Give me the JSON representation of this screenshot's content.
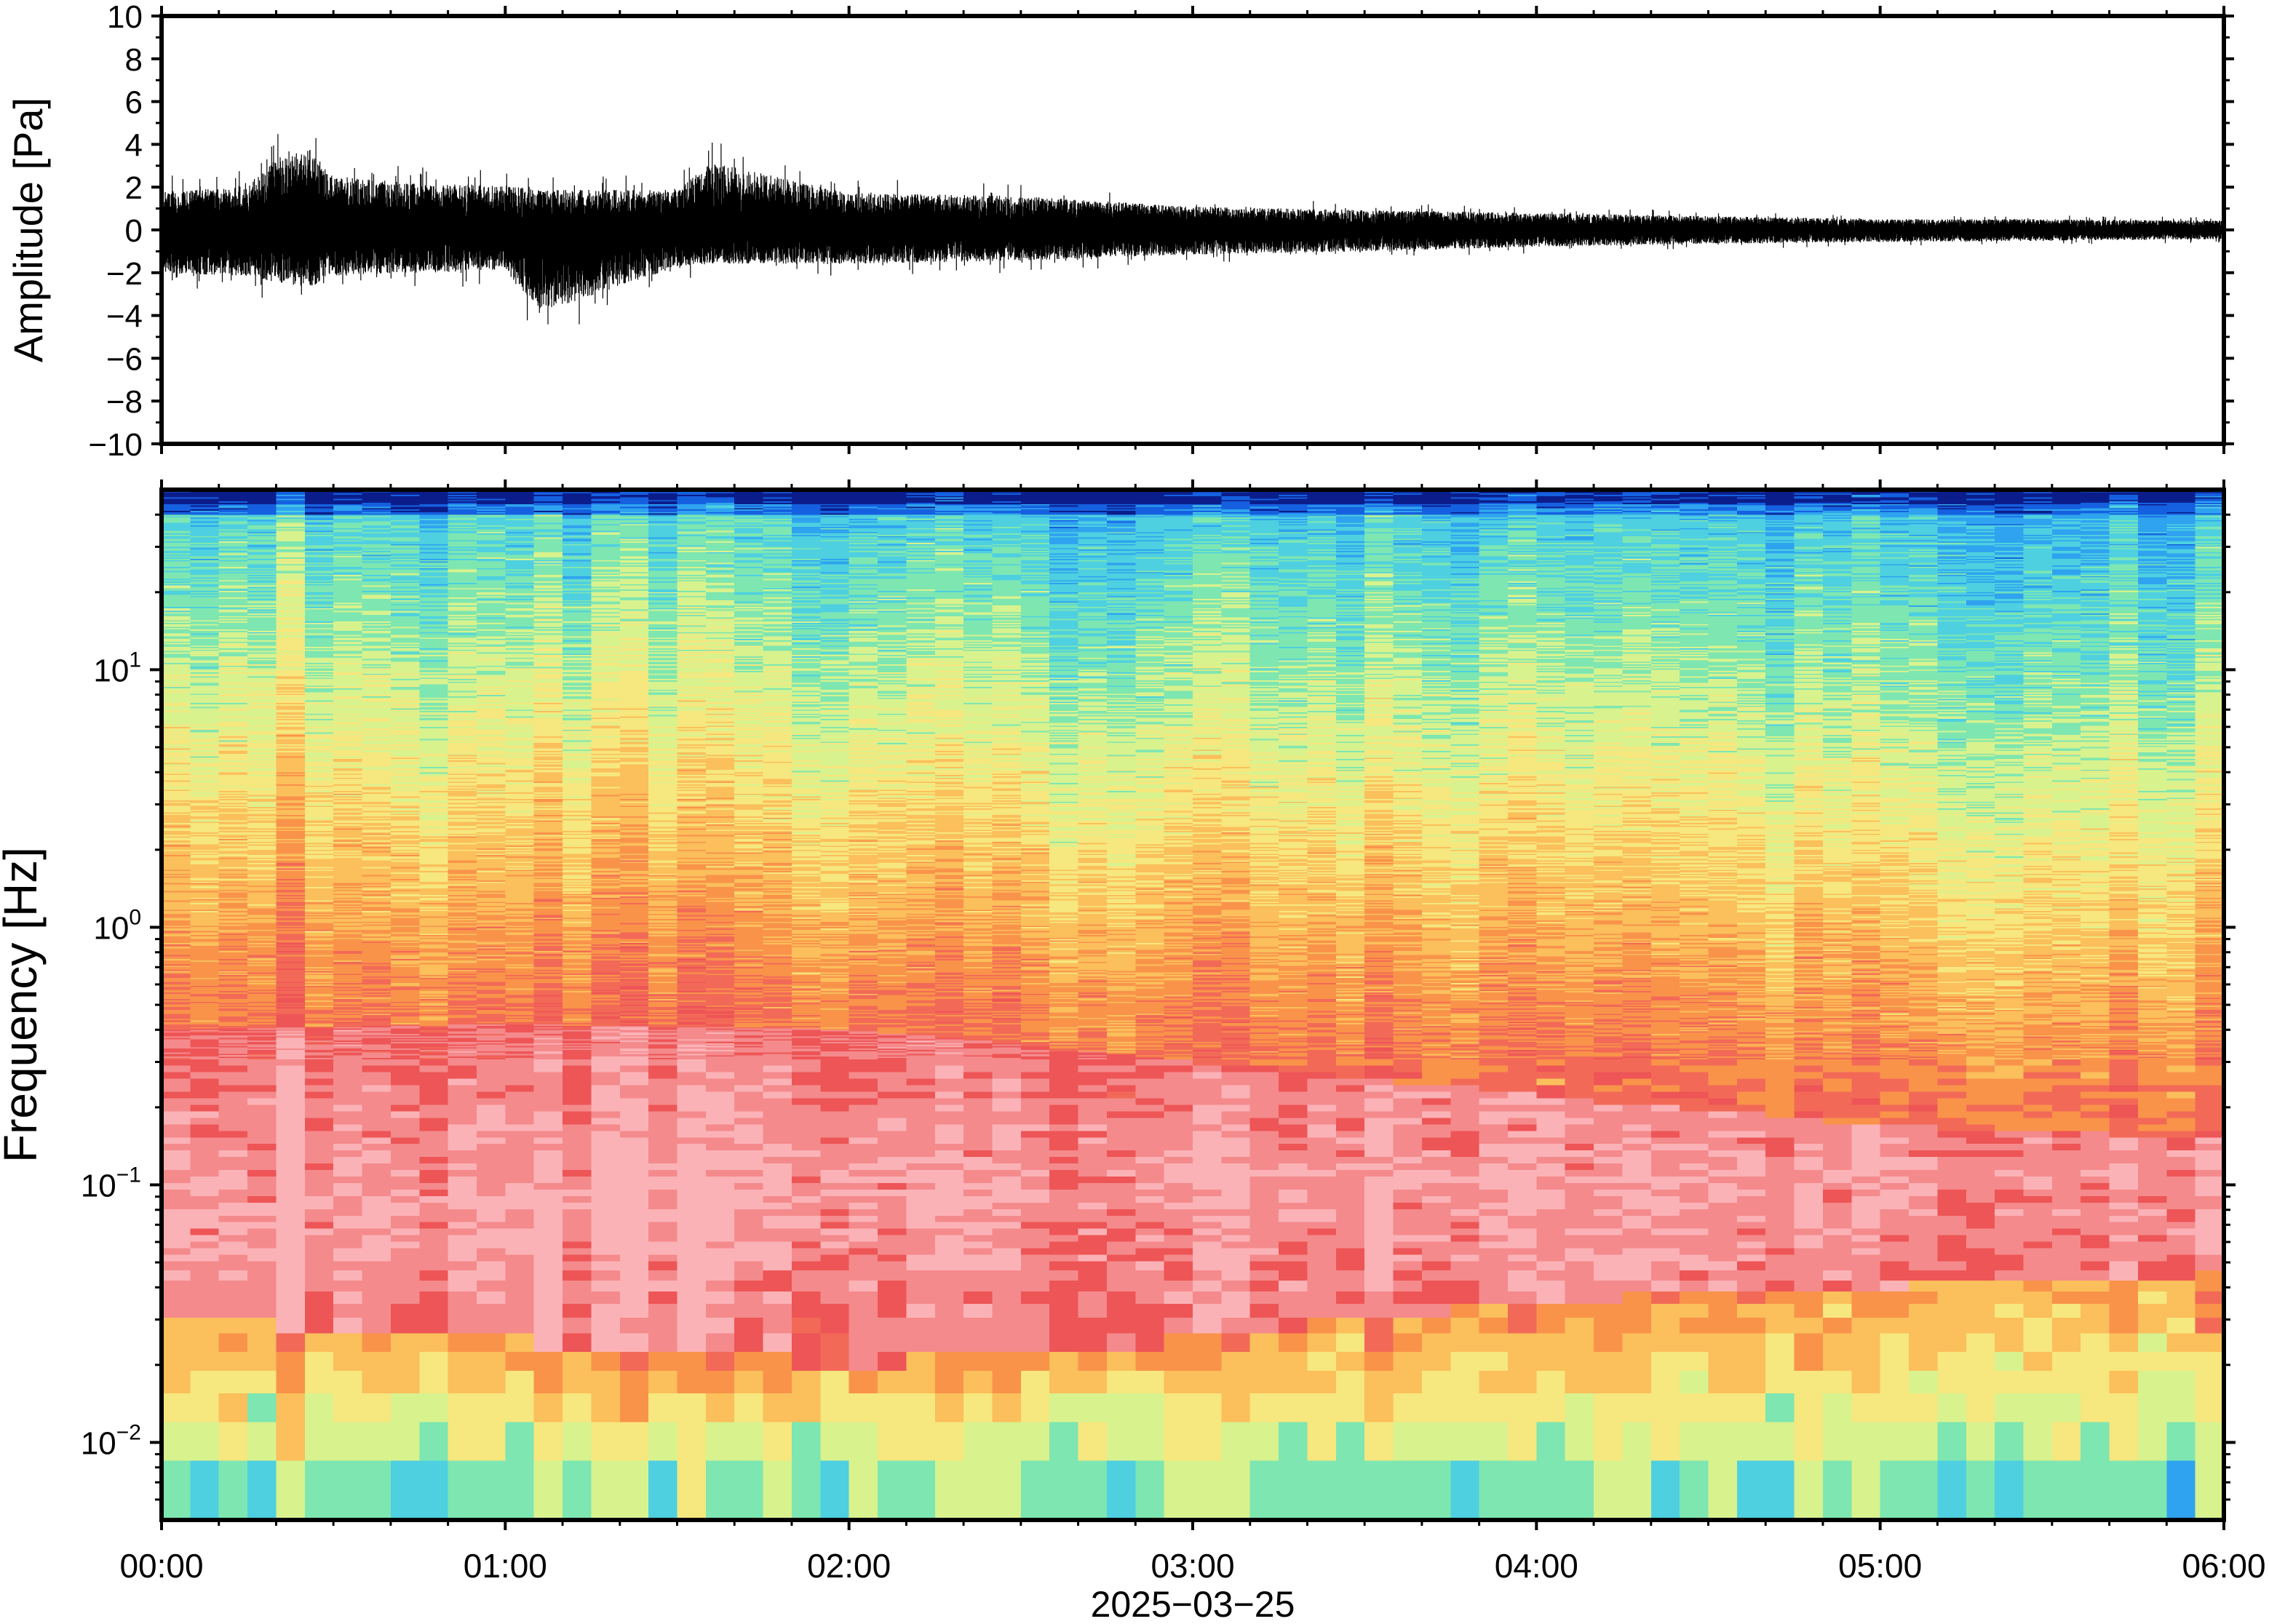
{
  "chart_data": [
    {
      "type": "line",
      "ylabel": "Amplitude [Pa]",
      "ylim": [
        -10,
        10
      ],
      "yticks": [
        "10",
        "8",
        "6",
        "4",
        "2",
        "0",
        "−2",
        "−4",
        "−6",
        "−8",
        "−10"
      ],
      "xlim": [
        "00:00",
        "06:00"
      ],
      "series": [
        {
          "points": [
            {
              "x": "00:00",
              "max": 2.5,
              "min": -2.8
            },
            {
              "x": "00:15",
              "max": 2.8,
              "min": -3.0
            },
            {
              "x": "00:20",
              "max": 4.7,
              "min": -3.4
            },
            {
              "x": "00:26",
              "max": 5.2,
              "min": -3.8
            },
            {
              "x": "00:30",
              "max": 3.5,
              "min": -3.0
            },
            {
              "x": "00:45",
              "max": 3.0,
              "min": -2.8
            },
            {
              "x": "01:00",
              "max": 2.9,
              "min": -2.6
            },
            {
              "x": "01:06",
              "max": 2.6,
              "min": -5.4
            },
            {
              "x": "01:30",
              "max": 2.6,
              "min": -2.4
            },
            {
              "x": "01:36",
              "max": 4.4,
              "min": -2.2
            },
            {
              "x": "02:00",
              "max": 2.4,
              "min": -2.2
            },
            {
              "x": "02:30",
              "max": 2.2,
              "min": -2.0
            },
            {
              "x": "03:00",
              "max": 1.5,
              "min": -1.6
            },
            {
              "x": "03:30",
              "max": 1.3,
              "min": -1.4
            },
            {
              "x": "04:00",
              "max": 1.1,
              "min": -1.1
            },
            {
              "x": "04:30",
              "max": 0.9,
              "min": -0.9
            },
            {
              "x": "05:00",
              "max": 0.7,
              "min": -0.8
            },
            {
              "x": "05:30",
              "max": 0.7,
              "min": -0.7
            },
            {
              "x": "06:00",
              "max": 0.6,
              "min": -0.6
            }
          ]
        }
      ]
    },
    {
      "type": "heatmap",
      "ylabel": "Frequency [Hz]",
      "yscale": "log",
      "ylim": [
        0.005,
        50
      ],
      "yticks": [
        {
          "value": 10,
          "base": "10",
          "exp": "1"
        },
        {
          "value": 1,
          "base": "10",
          "exp": "0"
        },
        {
          "value": 0.1,
          "base": "10",
          "exp": "−1"
        },
        {
          "value": 0.01,
          "base": "10",
          "exp": "−2"
        }
      ],
      "xlim": [
        "00:00",
        "06:00"
      ],
      "colormap": [
        "#0b1d8a",
        "#1560e0",
        "#2fa3ef",
        "#4ed0e0",
        "#7ee6b0",
        "#d8f28e",
        "#f6e77e",
        "#fbbf5c",
        "#f9934a",
        "#f26a57",
        "#ee5556",
        "#f48a8c",
        "#fbb2b6"
      ],
      "power_bands": [
        {
          "time": "00:00",
          "hot_low_hz": 0.03,
          "hot_high_hz": 0.4,
          "peak": 0.07,
          "floor": 0.42
        },
        {
          "time": "01:00",
          "hot_low_hz": 0.025,
          "hot_high_hz": 0.42,
          "peak": 0.08,
          "floor": 0.4
        },
        {
          "time": "02:00",
          "hot_low_hz": 0.02,
          "hot_high_hz": 0.4,
          "peak": 0.09,
          "floor": 0.38
        },
        {
          "time": "03:00",
          "hot_low_hz": 0.025,
          "hot_high_hz": 0.3,
          "peak": 0.1,
          "floor": 0.32
        },
        {
          "time": "04:00",
          "hot_low_hz": 0.035,
          "hot_high_hz": 0.22,
          "peak": 0.1,
          "floor": 0.28
        },
        {
          "time": "05:00",
          "hot_low_hz": 0.04,
          "hot_high_hz": 0.17,
          "peak": 0.1,
          "floor": 0.26
        },
        {
          "time": "06:00",
          "hot_low_hz": 0.045,
          "hot_high_hz": 0.15,
          "peak": 0.1,
          "floor": 0.25
        }
      ]
    }
  ],
  "xaxis": {
    "ticks": [
      "00:00",
      "01:00",
      "02:00",
      "03:00",
      "04:00",
      "05:00",
      "06:00"
    ],
    "label": "2025−03−25"
  }
}
